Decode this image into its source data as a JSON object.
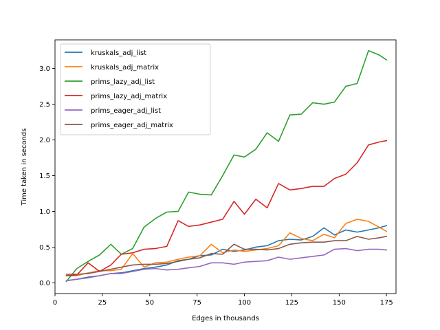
{
  "chart_data": {
    "type": "line",
    "title": "",
    "xlabel": "Edges in thousands",
    "ylabel": "Time taken in seconds",
    "xlim": [
      0,
      180
    ],
    "ylim": [
      -0.15,
      3.4
    ],
    "xticks": [
      0,
      25,
      50,
      75,
      100,
      125,
      150,
      175
    ],
    "yticks": [
      0.0,
      0.5,
      1.0,
      1.5,
      2.0,
      2.5,
      3.0
    ],
    "xtick_labels": [
      "0",
      "25",
      "50",
      "75",
      "100",
      "125",
      "150",
      "175"
    ],
    "ytick_labels": [
      "0.0",
      "0.5",
      "1.0",
      "1.5",
      "2.0",
      "2.5",
      "3.0"
    ],
    "grid": false,
    "legend_position": "top-left",
    "x": [
      6,
      11.5,
      17.5,
      23.5,
      29.5,
      35,
      41,
      47,
      53,
      59,
      65,
      70.5,
      76.5,
      82.5,
      88.5,
      94.5,
      100,
      106,
      112,
      118,
      124,
      130,
      136,
      142,
      147.5,
      153.5,
      159.5,
      165.5,
      171,
      175
    ],
    "series": [
      {
        "name": "kruskals_adj_list",
        "color": "#1f77b4",
        "values": [
          0.03,
          0.05,
          0.08,
          0.1,
          0.13,
          0.14,
          0.17,
          0.2,
          0.22,
          0.25,
          0.31,
          0.33,
          0.38,
          0.39,
          0.47,
          0.44,
          0.46,
          0.5,
          0.52,
          0.59,
          0.61,
          0.6,
          0.65,
          0.77,
          0.67,
          0.74,
          0.71,
          0.74,
          0.77,
          0.8
        ]
      },
      {
        "name": "kruskals_adj_matrix",
        "color": "#ff7f0e",
        "values": [
          0.1,
          0.1,
          0.14,
          0.17,
          0.17,
          0.19,
          0.41,
          0.22,
          0.28,
          0.29,
          0.33,
          0.36,
          0.38,
          0.54,
          0.42,
          0.46,
          0.44,
          0.46,
          0.48,
          0.52,
          0.7,
          0.62,
          0.59,
          0.68,
          0.63,
          0.83,
          0.89,
          0.86,
          0.78,
          0.72
        ]
      },
      {
        "name": "prims_lazy_adj_list",
        "color": "#2ca02c",
        "values": [
          0.02,
          0.2,
          0.3,
          0.39,
          0.54,
          0.4,
          0.48,
          0.78,
          0.9,
          0.99,
          1.0,
          1.27,
          1.24,
          1.23,
          1.5,
          1.79,
          1.76,
          1.87,
          2.1,
          1.98,
          2.35,
          2.36,
          2.52,
          2.5,
          2.53,
          2.75,
          2.79,
          3.25,
          3.19,
          3.12
        ]
      },
      {
        "name": "prims_lazy_adj_matrix",
        "color": "#d62728",
        "values": [
          0.1,
          0.11,
          0.28,
          0.16,
          0.25,
          0.4,
          0.42,
          0.47,
          0.48,
          0.51,
          0.87,
          0.79,
          0.81,
          0.85,
          0.89,
          1.14,
          0.96,
          1.17,
          1.05,
          1.39,
          1.3,
          1.32,
          1.35,
          1.35,
          1.46,
          1.52,
          1.68,
          1.93,
          1.97,
          1.99
        ]
      },
      {
        "name": "prims_eager_adj_list",
        "color": "#9467bd",
        "values": [
          0.03,
          0.05,
          0.07,
          0.1,
          0.13,
          0.13,
          0.16,
          0.19,
          0.2,
          0.18,
          0.19,
          0.21,
          0.23,
          0.28,
          0.28,
          0.26,
          0.29,
          0.3,
          0.31,
          0.36,
          0.33,
          0.35,
          0.37,
          0.39,
          0.47,
          0.48,
          0.45,
          0.47,
          0.47,
          0.46
        ]
      },
      {
        "name": "prims_eager_adj_matrix",
        "color": "#8c564b",
        "values": [
          0.12,
          0.12,
          0.13,
          0.16,
          0.19,
          0.22,
          0.25,
          0.26,
          0.26,
          0.27,
          0.3,
          0.33,
          0.35,
          0.41,
          0.4,
          0.54,
          0.47,
          0.47,
          0.46,
          0.48,
          0.54,
          0.56,
          0.57,
          0.57,
          0.59,
          0.59,
          0.65,
          0.61,
          0.63,
          0.65
        ]
      }
    ]
  }
}
